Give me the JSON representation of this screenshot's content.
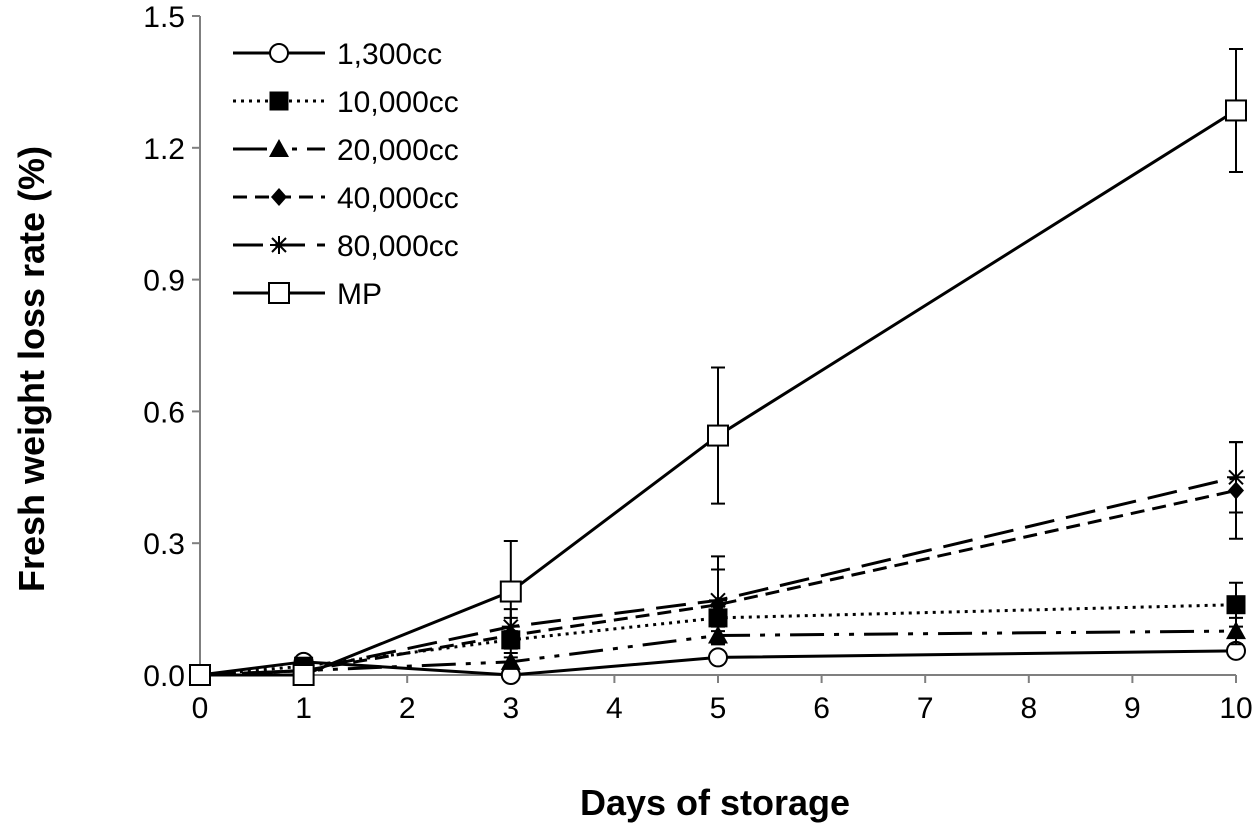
{
  "chart_data": {
    "type": "line",
    "title": "",
    "xlabel": "Days of storage",
    "ylabel": "Fresh weight loss rate (%)",
    "xlim": [
      0,
      10
    ],
    "ylim": [
      0,
      1.5
    ],
    "x_ticks": [
      0,
      1,
      2,
      3,
      4,
      5,
      6,
      7,
      8,
      9,
      10
    ],
    "y_ticks": [
      0,
      0.3,
      0.6,
      0.9,
      1.2,
      1.5
    ],
    "y_tick_labels": [
      "0.0",
      "0.3",
      "0.6",
      "0.9",
      "1.2",
      "1.5"
    ],
    "x": [
      0,
      1,
      3,
      5,
      10
    ],
    "grid": false,
    "legend_position": "top-left",
    "series": [
      {
        "name": "1,300cc",
        "marker": "circle-open",
        "line": "solid",
        "values": [
          0.0,
          0.03,
          0.0,
          0.04,
          0.055
        ],
        "errors": [
          0,
          0.01,
          0.005,
          0.005,
          0.01
        ]
      },
      {
        "name": "10,000cc",
        "marker": "square-filled",
        "line": "dotted",
        "values": [
          0.0,
          0.02,
          0.08,
          0.13,
          0.16
        ],
        "errors": [
          0,
          0.01,
          0.02,
          0.03,
          0.05
        ]
      },
      {
        "name": "20,000cc",
        "marker": "triangle-filled",
        "line": "dash-dot-dot",
        "values": [
          0.0,
          0.01,
          0.03,
          0.09,
          0.1
        ],
        "errors": [
          0,
          0.01,
          0.01,
          0.02,
          0.03
        ]
      },
      {
        "name": "40,000cc",
        "marker": "diamond-filled",
        "line": "dashed",
        "values": [
          0.0,
          0.01,
          0.09,
          0.16,
          0.42
        ],
        "errors": [
          0,
          0.01,
          0.04,
          0.08,
          0.11
        ]
      },
      {
        "name": "80,000cc",
        "marker": "asterisk",
        "line": "long-dash",
        "values": [
          0.0,
          0.01,
          0.11,
          0.17,
          0.45
        ],
        "errors": [
          0,
          0.01,
          0.04,
          0.1,
          0.08
        ]
      },
      {
        "name": "MP",
        "marker": "square-open",
        "line": "solid",
        "values": [
          0.0,
          0.0,
          0.19,
          0.545,
          1.285
        ],
        "errors": [
          0,
          0.01,
          0.115,
          0.155,
          0.14
        ]
      }
    ]
  }
}
